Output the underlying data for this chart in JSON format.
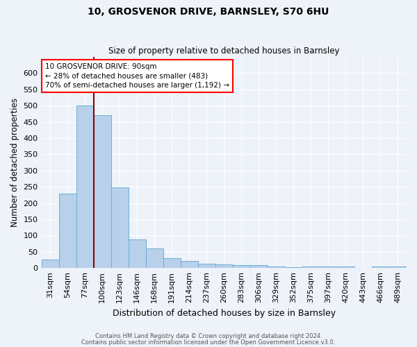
{
  "title1": "10, GROSVENOR DRIVE, BARNSLEY, S70 6HU",
  "title2": "Size of property relative to detached houses in Barnsley",
  "xlabel": "Distribution of detached houses by size in Barnsley",
  "ylabel": "Number of detached properties",
  "categories": [
    "31sqm",
    "54sqm",
    "77sqm",
    "100sqm",
    "123sqm",
    "146sqm",
    "168sqm",
    "191sqm",
    "214sqm",
    "237sqm",
    "260sqm",
    "283sqm",
    "306sqm",
    "329sqm",
    "352sqm",
    "375sqm",
    "397sqm",
    "420sqm",
    "443sqm",
    "466sqm",
    "489sqm"
  ],
  "values": [
    25,
    230,
    500,
    470,
    248,
    89,
    60,
    30,
    22,
    14,
    11,
    10,
    8,
    4,
    3,
    4,
    5,
    5,
    1,
    5,
    5
  ],
  "bar_color": "#b8d0ea",
  "bar_edge_color": "#6aaed6",
  "red_line_x": 2.5,
  "annotation_line1": "10 GROSVENOR DRIVE: 90sqm",
  "annotation_line2": "← 28% of detached houses are smaller (483)",
  "annotation_line3": "70% of semi-detached houses are larger (1,192) →",
  "footer1": "Contains HM Land Registry data © Crown copyright and database right 2024.",
  "footer2": "Contains public sector information licensed under the Open Government Licence v3.0.",
  "ylim": [
    0,
    650
  ],
  "yticks": [
    0,
    50,
    100,
    150,
    200,
    250,
    300,
    350,
    400,
    450,
    500,
    550,
    600
  ],
  "bg_color": "#eef2f9",
  "title1_fontsize": 10,
  "title2_fontsize": 8.5
}
